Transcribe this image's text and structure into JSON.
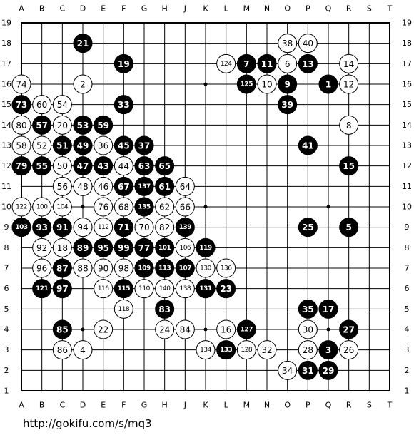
{
  "board": {
    "columns": [
      "A",
      "B",
      "C",
      "D",
      "E",
      "F",
      "G",
      "H",
      "J",
      "K",
      "L",
      "M",
      "N",
      "O",
      "P",
      "Q",
      "R",
      "S",
      "T"
    ],
    "rows": [
      19,
      18,
      17,
      16,
      15,
      14,
      13,
      12,
      11,
      10,
      9,
      8,
      7,
      6,
      5,
      4,
      3,
      2,
      1
    ],
    "stones": [
      {
        "col": "D",
        "row": 18,
        "color": "black",
        "label": 21
      },
      {
        "col": "O",
        "row": 18,
        "color": "white",
        "label": 38
      },
      {
        "col": "P",
        "row": 18,
        "color": "white",
        "label": 40
      },
      {
        "col": "F",
        "row": 17,
        "color": "black",
        "label": 19
      },
      {
        "col": "L",
        "row": 17,
        "color": "white",
        "label": 124
      },
      {
        "col": "M",
        "row": 17,
        "color": "black",
        "label": 7
      },
      {
        "col": "N",
        "row": 17,
        "color": "black",
        "label": 11
      },
      {
        "col": "O",
        "row": 17,
        "color": "white",
        "label": 6
      },
      {
        "col": "P",
        "row": 17,
        "color": "black",
        "label": 13
      },
      {
        "col": "R",
        "row": 17,
        "color": "white",
        "label": 14
      },
      {
        "col": "A",
        "row": 16,
        "color": "white",
        "label": 74
      },
      {
        "col": "D",
        "row": 16,
        "color": "white",
        "label": 2
      },
      {
        "col": "M",
        "row": 16,
        "color": "black",
        "label": 125
      },
      {
        "col": "N",
        "row": 16,
        "color": "white",
        "label": 10
      },
      {
        "col": "O",
        "row": 16,
        "color": "black",
        "label": 9
      },
      {
        "col": "Q",
        "row": 16,
        "color": "black",
        "label": 1
      },
      {
        "col": "R",
        "row": 16,
        "color": "white",
        "label": 12
      },
      {
        "col": "A",
        "row": 15,
        "color": "black",
        "label": 73
      },
      {
        "col": "B",
        "row": 15,
        "color": "white",
        "label": 60
      },
      {
        "col": "C",
        "row": 15,
        "color": "white",
        "label": 54
      },
      {
        "col": "F",
        "row": 15,
        "color": "black",
        "label": 33
      },
      {
        "col": "O",
        "row": 15,
        "color": "black",
        "label": 39
      },
      {
        "col": "A",
        "row": 14,
        "color": "white",
        "label": 80
      },
      {
        "col": "B",
        "row": 14,
        "color": "black",
        "label": 57
      },
      {
        "col": "C",
        "row": 14,
        "color": "white",
        "label": 20
      },
      {
        "col": "D",
        "row": 14,
        "color": "black",
        "label": 53
      },
      {
        "col": "E",
        "row": 14,
        "color": "black",
        "label": 59
      },
      {
        "col": "R",
        "row": 14,
        "color": "white",
        "label": 8
      },
      {
        "col": "A",
        "row": 13,
        "color": "white",
        "label": 58
      },
      {
        "col": "B",
        "row": 13,
        "color": "white",
        "label": 52
      },
      {
        "col": "C",
        "row": 13,
        "color": "black",
        "label": 51
      },
      {
        "col": "D",
        "row": 13,
        "color": "black",
        "label": 49
      },
      {
        "col": "E",
        "row": 13,
        "color": "white",
        "label": 36
      },
      {
        "col": "F",
        "row": 13,
        "color": "black",
        "label": 45
      },
      {
        "col": "G",
        "row": 13,
        "color": "black",
        "label": 37
      },
      {
        "col": "P",
        "row": 13,
        "color": "black",
        "label": 41
      },
      {
        "col": "A",
        "row": 12,
        "color": "black",
        "label": 79
      },
      {
        "col": "B",
        "row": 12,
        "color": "black",
        "label": 55
      },
      {
        "col": "C",
        "row": 12,
        "color": "white",
        "label": 50
      },
      {
        "col": "D",
        "row": 12,
        "color": "black",
        "label": 47
      },
      {
        "col": "E",
        "row": 12,
        "color": "black",
        "label": 43
      },
      {
        "col": "F",
        "row": 12,
        "color": "white",
        "label": 44
      },
      {
        "col": "G",
        "row": 12,
        "color": "black",
        "label": 63
      },
      {
        "col": "H",
        "row": 12,
        "color": "black",
        "label": 65
      },
      {
        "col": "R",
        "row": 12,
        "color": "black",
        "label": 15
      },
      {
        "col": "C",
        "row": 11,
        "color": "white",
        "label": 56
      },
      {
        "col": "D",
        "row": 11,
        "color": "white",
        "label": 48
      },
      {
        "col": "E",
        "row": 11,
        "color": "white",
        "label": 46
      },
      {
        "col": "F",
        "row": 11,
        "color": "black",
        "label": 67
      },
      {
        "col": "G",
        "row": 11,
        "color": "black",
        "label": 137
      },
      {
        "col": "H",
        "row": 11,
        "color": "black",
        "label": 61
      },
      {
        "col": "J",
        "row": 11,
        "color": "white",
        "label": 64
      },
      {
        "col": "A",
        "row": 10,
        "color": "white",
        "label": 122
      },
      {
        "col": "B",
        "row": 10,
        "color": "white",
        "label": 100
      },
      {
        "col": "C",
        "row": 10,
        "color": "white",
        "label": 104
      },
      {
        "col": "E",
        "row": 10,
        "color": "white",
        "label": 76
      },
      {
        "col": "F",
        "row": 10,
        "color": "white",
        "label": 68
      },
      {
        "col": "G",
        "row": 10,
        "color": "black",
        "label": 135
      },
      {
        "col": "H",
        "row": 10,
        "color": "white",
        "label": 62
      },
      {
        "col": "J",
        "row": 10,
        "color": "white",
        "label": 66
      },
      {
        "col": "A",
        "row": 9,
        "color": "black",
        "label": 103
      },
      {
        "col": "B",
        "row": 9,
        "color": "black",
        "label": 93
      },
      {
        "col": "C",
        "row": 9,
        "color": "black",
        "label": 91
      },
      {
        "col": "D",
        "row": 9,
        "color": "white",
        "label": 94
      },
      {
        "col": "E",
        "row": 9,
        "color": "white",
        "label": 112
      },
      {
        "col": "F",
        "row": 9,
        "color": "black",
        "label": 71
      },
      {
        "col": "G",
        "row": 9,
        "color": "white",
        "label": 70
      },
      {
        "col": "H",
        "row": 9,
        "color": "white",
        "label": 82
      },
      {
        "col": "J",
        "row": 9,
        "color": "black",
        "label": 139
      },
      {
        "col": "P",
        "row": 9,
        "color": "black",
        "label": 25
      },
      {
        "col": "R",
        "row": 9,
        "color": "black",
        "label": 5
      },
      {
        "col": "B",
        "row": 8,
        "color": "white",
        "label": 92
      },
      {
        "col": "C",
        "row": 8,
        "color": "white",
        "label": 18
      },
      {
        "col": "D",
        "row": 8,
        "color": "black",
        "label": 89
      },
      {
        "col": "E",
        "row": 8,
        "color": "black",
        "label": 95
      },
      {
        "col": "F",
        "row": 8,
        "color": "black",
        "label": 99
      },
      {
        "col": "G",
        "row": 8,
        "color": "black",
        "label": 77
      },
      {
        "col": "H",
        "row": 8,
        "color": "black",
        "label": 101
      },
      {
        "col": "J",
        "row": 8,
        "color": "white",
        "label": 106
      },
      {
        "col": "K",
        "row": 8,
        "color": "black",
        "label": 119
      },
      {
        "col": "B",
        "row": 7,
        "color": "white",
        "label": 96
      },
      {
        "col": "C",
        "row": 7,
        "color": "black",
        "label": 87
      },
      {
        "col": "D",
        "row": 7,
        "color": "white",
        "label": 88
      },
      {
        "col": "E",
        "row": 7,
        "color": "white",
        "label": 90
      },
      {
        "col": "F",
        "row": 7,
        "color": "white",
        "label": 98
      },
      {
        "col": "G",
        "row": 7,
        "color": "black",
        "label": 109
      },
      {
        "col": "H",
        "row": 7,
        "color": "black",
        "label": 113
      },
      {
        "col": "J",
        "row": 7,
        "color": "black",
        "label": 107
      },
      {
        "col": "K",
        "row": 7,
        "color": "white",
        "label": 130
      },
      {
        "col": "L",
        "row": 7,
        "color": "white",
        "label": 136
      },
      {
        "col": "B",
        "row": 6,
        "color": "black",
        "label": 121
      },
      {
        "col": "C",
        "row": 6,
        "color": "black",
        "label": 97
      },
      {
        "col": "E",
        "row": 6,
        "color": "white",
        "label": 116
      },
      {
        "col": "F",
        "row": 6,
        "color": "black",
        "label": 115
      },
      {
        "col": "G",
        "row": 6,
        "color": "white",
        "label": 110
      },
      {
        "col": "H",
        "row": 6,
        "color": "white",
        "label": 140
      },
      {
        "col": "J",
        "row": 6,
        "color": "white",
        "label": 138
      },
      {
        "col": "K",
        "row": 6,
        "color": "black",
        "label": 131
      },
      {
        "col": "L",
        "row": 6,
        "color": "black",
        "label": 23
      },
      {
        "col": "F",
        "row": 5,
        "color": "white",
        "label": 118
      },
      {
        "col": "H",
        "row": 5,
        "color": "black",
        "label": 83
      },
      {
        "col": "P",
        "row": 5,
        "color": "black",
        "label": 35
      },
      {
        "col": "Q",
        "row": 5,
        "color": "black",
        "label": 17
      },
      {
        "col": "C",
        "row": 4,
        "color": "black",
        "label": 85
      },
      {
        "col": "E",
        "row": 4,
        "color": "white",
        "label": 22
      },
      {
        "col": "H",
        "row": 4,
        "color": "white",
        "label": 24
      },
      {
        "col": "J",
        "row": 4,
        "color": "white",
        "label": 84
      },
      {
        "col": "L",
        "row": 4,
        "color": "white",
        "label": 16
      },
      {
        "col": "M",
        "row": 4,
        "color": "black",
        "label": 127
      },
      {
        "col": "P",
        "row": 4,
        "color": "white",
        "label": 30
      },
      {
        "col": "R",
        "row": 4,
        "color": "black",
        "label": 27
      },
      {
        "col": "C",
        "row": 3,
        "color": "white",
        "label": 86
      },
      {
        "col": "D",
        "row": 3,
        "color": "white",
        "label": 4
      },
      {
        "col": "K",
        "row": 3,
        "color": "white",
        "label": 134
      },
      {
        "col": "L",
        "row": 3,
        "color": "black",
        "label": 133
      },
      {
        "col": "M",
        "row": 3,
        "color": "white",
        "label": 128
      },
      {
        "col": "N",
        "row": 3,
        "color": "white",
        "label": 32
      },
      {
        "col": "P",
        "row": 3,
        "color": "white",
        "label": 28
      },
      {
        "col": "Q",
        "row": 3,
        "color": "black",
        "label": 3
      },
      {
        "col": "R",
        "row": 3,
        "color": "white",
        "label": 26
      },
      {
        "col": "O",
        "row": 2,
        "color": "white",
        "label": 34
      },
      {
        "col": "P",
        "row": 2,
        "color": "black",
        "label": 31
      },
      {
        "col": "Q",
        "row": 2,
        "color": "black",
        "label": 29
      }
    ]
  },
  "footer": {
    "url": "http://gokifu.com/s/mq3"
  }
}
